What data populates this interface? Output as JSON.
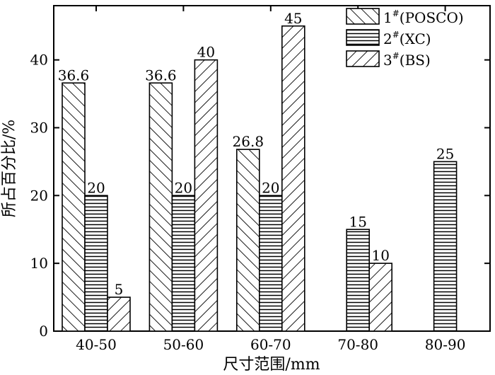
{
  "chart_data": {
    "type": "bar",
    "categories": [
      "40-50",
      "50-60",
      "60-70",
      "70-80",
      "80-90"
    ],
    "series": [
      {
        "name": "1#(POSCO)",
        "pattern": "diag-fwd",
        "values": [
          36.6,
          36.6,
          26.8,
          null,
          null
        ],
        "labels": [
          "36.6",
          "36.6",
          "26.8",
          "",
          ""
        ]
      },
      {
        "name": "2#(XC)",
        "pattern": "horizontal",
        "values": [
          20,
          20,
          20,
          15,
          25
        ],
        "labels": [
          "20",
          "20",
          "20",
          "15",
          "25"
        ]
      },
      {
        "name": "3#(BS)",
        "pattern": "diag-back",
        "values": [
          5,
          40,
          45,
          10,
          null
        ],
        "labels": [
          "5",
          "40",
          "45",
          "10",
          ""
        ]
      }
    ],
    "ylim": [
      0,
      48
    ],
    "yticks": [
      0,
      10,
      20,
      30,
      40
    ],
    "xlabel": "尺寸范围/mm",
    "ylabel": "所占百分比/%",
    "legend": {
      "position": "top-right",
      "items": [
        {
          "num": "1",
          "sup": "#",
          "rest": "(POSCO)"
        },
        {
          "num": "2",
          "sup": "#",
          "rest": "(XC)"
        },
        {
          "num": "3",
          "sup": "#",
          "rest": "(BS)"
        }
      ]
    },
    "colors": {
      "stroke": "#000000",
      "background": "#ffffff"
    }
  }
}
